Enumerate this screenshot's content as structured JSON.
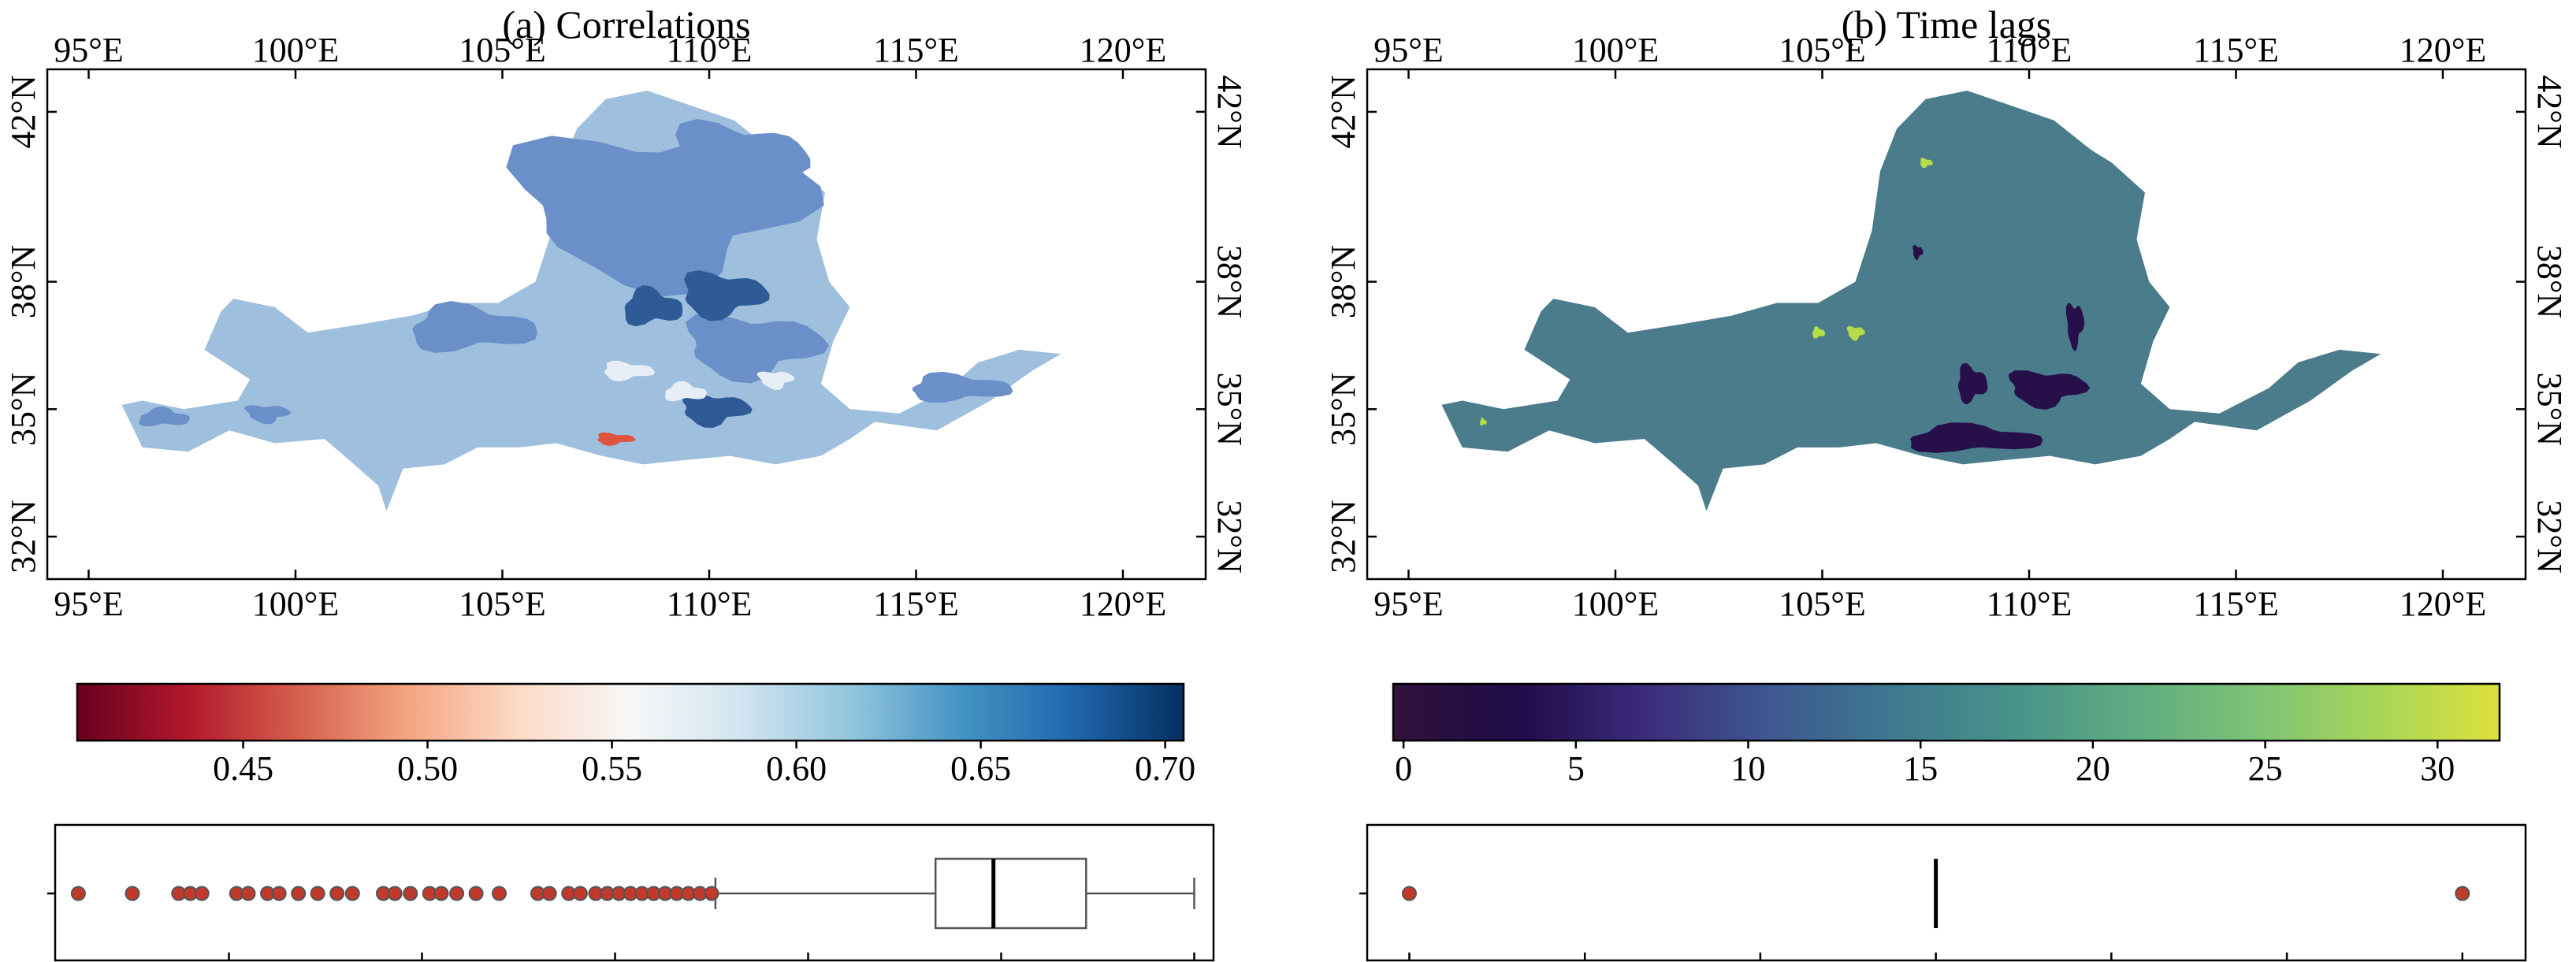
{
  "figure": {
    "panels": [
      {
        "id": "a",
        "title": "(a) Correlations"
      },
      {
        "id": "b",
        "title": "(b) Time lags"
      }
    ]
  },
  "chart_data": [
    {
      "type": "heatmap",
      "title": "(a) Correlations",
      "x_ticks": [
        "95°E",
        "100°E",
        "105°E",
        "110°E",
        "115°E",
        "120°E"
      ],
      "x_tick_values": [
        95,
        100,
        105,
        110,
        115,
        120
      ],
      "y_ticks": [
        "32°N",
        "35°N",
        "38°N",
        "42°N"
      ],
      "y_tick_values": [
        32,
        35,
        38,
        42
      ],
      "xlim": [
        94,
        122
      ],
      "ylim": [
        31,
        43
      ],
      "colormap": "RdBu",
      "colorbar": {
        "range": [
          0.405,
          0.705
        ],
        "ticks": [
          "0.45",
          "0.50",
          "0.55",
          "0.60",
          "0.65",
          "0.70"
        ],
        "tick_values": [
          0.45,
          0.5,
          0.55,
          0.6,
          0.65,
          0.7
        ],
        "colors": [
          "#67001f",
          "#b2182b",
          "#d6604d",
          "#f4a582",
          "#fddbc7",
          "#f7f7f7",
          "#d1e5f0",
          "#92c5de",
          "#4393c3",
          "#2166ac",
          "#053061"
        ]
      },
      "regions": [
        {
          "level": 0.61,
          "color": "#9ebfde"
        },
        {
          "level": 0.635,
          "color": "#6a8fc9"
        },
        {
          "level": 0.66,
          "color": "#2e5a96"
        },
        {
          "level": 0.57,
          "color": "#e8eef5"
        },
        {
          "level": 0.45,
          "color": "#e0543f"
        }
      ],
      "boxplot": {
        "xlim": [
          0.405,
          0.705
        ],
        "whisker_low": 0.576,
        "q1": 0.633,
        "median": 0.648,
        "q3": 0.672,
        "whisker_high": 0.7,
        "outliers": [
          0.411,
          0.425,
          0.437,
          0.44,
          0.443,
          0.452,
          0.455,
          0.46,
          0.463,
          0.468,
          0.473,
          0.478,
          0.482,
          0.49,
          0.493,
          0.497,
          0.502,
          0.505,
          0.509,
          0.514,
          0.52,
          0.53,
          0.533,
          0.538,
          0.541,
          0.545,
          0.548,
          0.551,
          0.554,
          0.557,
          0.56,
          0.563,
          0.566,
          0.569,
          0.572,
          0.575
        ]
      }
    },
    {
      "type": "heatmap",
      "title": "(b) Time lags",
      "x_ticks": [
        "95°E",
        "100°E",
        "105°E",
        "110°E",
        "115°E",
        "120°E"
      ],
      "x_tick_values": [
        95,
        100,
        105,
        110,
        115,
        120
      ],
      "y_ticks": [
        "32°N",
        "35°N",
        "38°N",
        "42°N"
      ],
      "y_tick_values": [
        32,
        35,
        38,
        42
      ],
      "xlim": [
        94,
        122
      ],
      "ylim": [
        31,
        43
      ],
      "colormap": "viridis",
      "colorbar": {
        "range": [
          -0.3,
          31.8
        ],
        "ticks": [
          "0",
          "5",
          "10",
          "15",
          "20",
          "25",
          "30"
        ],
        "tick_values": [
          0,
          5,
          10,
          15,
          20,
          25,
          30
        ],
        "colors": [
          "#30123b",
          "#1f0c48",
          "#3b2a78",
          "#3e5590",
          "#3e7790",
          "#48918a",
          "#5fab82",
          "#7cc277",
          "#a7d658",
          "#dde03c"
        ]
      },
      "regions": [
        {
          "level": 15,
          "color": "#4a7c8c"
        },
        {
          "level": 0,
          "color": "#27104a"
        },
        {
          "level": 29,
          "color": "#b7dc4a"
        }
      ],
      "boxplot": {
        "xlim": [
          -1.2,
          31.8
        ],
        "median": 15,
        "outliers": [
          0,
          30
        ]
      }
    }
  ]
}
